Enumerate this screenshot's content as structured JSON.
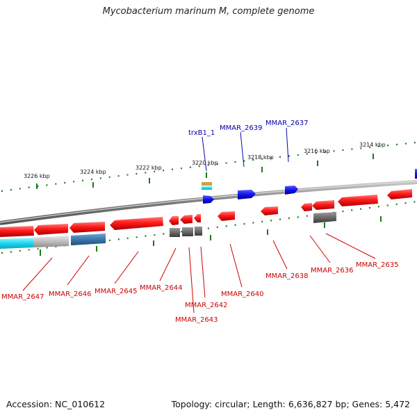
{
  "title": "Mycobacterium marinum M, complete genome",
  "footer": {
    "accession": "Accession: NC_010612",
    "stats": "Topology: circular; Length: 6,636,827 bp; Genes: 5,472"
  },
  "scale": {
    "ticks": [
      "3226 kbp",
      "3224 kbp",
      "3222 kbp",
      "3220 kbp",
      "3218 kbp",
      "3216 kbp",
      "3214 kbp"
    ]
  },
  "genes_forward": [
    {
      "label": "trxB1_1"
    },
    {
      "label": "MMAR_2639"
    },
    {
      "label": "MMAR_2637"
    }
  ],
  "genes_reverse": [
    {
      "label": "MMAR_2647"
    },
    {
      "label": "MMAR_2646"
    },
    {
      "label": "MMAR_2645"
    },
    {
      "label": "MMAR_2644"
    },
    {
      "label": "MMAR_2643"
    },
    {
      "label": "MMAR_2642"
    },
    {
      "label": "MMAR_2640"
    },
    {
      "label": "MMAR_2638"
    },
    {
      "label": "MMAR_2636"
    },
    {
      "label": "MMAR_2635"
    }
  ],
  "colors": {
    "backbone": "#777777",
    "cds_reverse": "#ff1a1a",
    "cds_forward": "#1010ee",
    "tick": "#1a7a1a",
    "gene_label_forward": "#0000aa",
    "gene_label_reverse": "#cc0000"
  }
}
